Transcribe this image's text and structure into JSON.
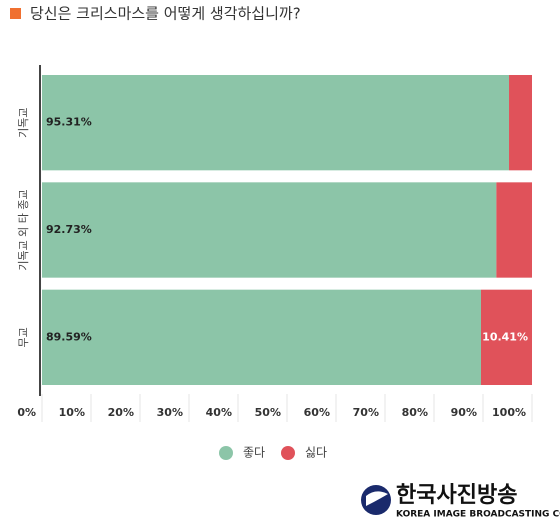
{
  "chart_data": {
    "type": "stacked-bar-horizontal",
    "title": "당신은 크리스마스를 어떻게 생각하십니까?",
    "categories": [
      "기독교",
      "기독교 외 타 종교",
      "무교"
    ],
    "series": [
      {
        "name": "좋다",
        "color": "#8cc5a8",
        "values": [
          95.31,
          92.73,
          89.59
        ],
        "value_labels": [
          "95.31%",
          "92.73%",
          "89.59%"
        ]
      },
      {
        "name": "싫다",
        "color": "#e0525a",
        "values": [
          4.69,
          7.27,
          10.41
        ],
        "value_labels": [
          null,
          null,
          "10.41%"
        ]
      }
    ],
    "xlim": [
      0,
      100
    ],
    "xticks": [
      {
        "value": 0,
        "label": "0%"
      },
      {
        "value": 10,
        "label": "10%"
      },
      {
        "value": 20,
        "label": "20%"
      },
      {
        "value": 30,
        "label": "30%"
      },
      {
        "value": 40,
        "label": "40%"
      },
      {
        "value": 50,
        "label": "50%"
      },
      {
        "value": 60,
        "label": "60%"
      },
      {
        "value": 70,
        "label": "70%"
      },
      {
        "value": 80,
        "label": "80%"
      },
      {
        "value": 90,
        "label": "90%"
      },
      {
        "value": 100,
        "label": "100%"
      }
    ],
    "title_marker_color": "#f07030"
  },
  "logo": {
    "name": "한국사진방송",
    "english": "KOREA IMAGE BROADCASTING CO."
  }
}
